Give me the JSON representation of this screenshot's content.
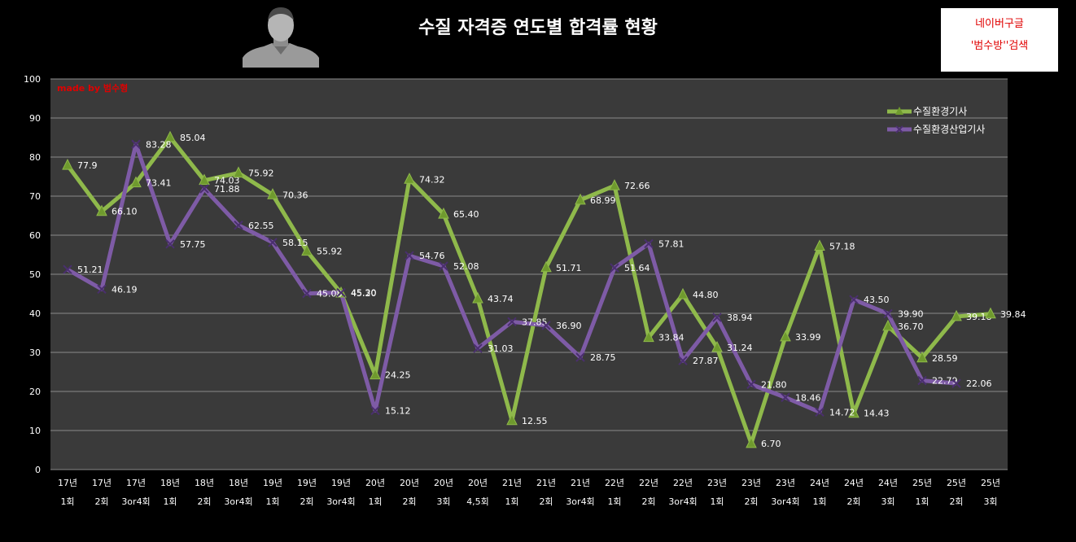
{
  "title": "수질 자격증 연도별 합격률 현황",
  "search_box": {
    "line1": "네이버구글",
    "line2": "'범수방''검색"
  },
  "made_by": "made by  범수형",
  "colors": {
    "series1": "#8FB94B",
    "series2": "#7E5BA6",
    "plot_bg": "#3a3a3a",
    "grid": "#8a8a8a"
  },
  "icons": {
    "avatar": "person-avatar-icon"
  },
  "chart_data": {
    "type": "line",
    "title": "수질 자격증 연도별 합격률 현황",
    "ylim": [
      0,
      100
    ],
    "yticks": [
      0,
      10,
      20,
      30,
      40,
      50,
      60,
      70,
      80,
      90,
      100
    ],
    "grid": true,
    "legend_position": "top-right",
    "categories": [
      [
        "17년",
        "1회"
      ],
      [
        "17년",
        "2회"
      ],
      [
        "17년",
        "3or4회"
      ],
      [
        "18년",
        "1회"
      ],
      [
        "18년",
        "2회"
      ],
      [
        "18년",
        "3or4회"
      ],
      [
        "19년",
        "1회"
      ],
      [
        "19년",
        "2회"
      ],
      [
        "19년",
        "3or4회"
      ],
      [
        "20년",
        "1회"
      ],
      [
        "20년",
        "2회"
      ],
      [
        "20년",
        "3회"
      ],
      [
        "20년",
        "4,5회"
      ],
      [
        "21년",
        "1회"
      ],
      [
        "21년",
        "2회"
      ],
      [
        "21년",
        "3or4회"
      ],
      [
        "22년",
        "1회"
      ],
      [
        "22년",
        "2회"
      ],
      [
        "22년",
        "3or4회"
      ],
      [
        "23년",
        "1회"
      ],
      [
        "23년",
        "2회"
      ],
      [
        "23년",
        "3or4회"
      ],
      [
        "24년",
        "1회"
      ],
      [
        "24년",
        "2회"
      ],
      [
        "24년",
        "3회"
      ],
      [
        "25년",
        "1회"
      ],
      [
        "25년",
        "2회"
      ],
      [
        "25년",
        "3회"
      ]
    ],
    "series": [
      {
        "name": "수질환경기사",
        "marker": "triangle",
        "values": [
          77.9,
          66.1,
          73.41,
          85.04,
          74.03,
          75.92,
          70.36,
          55.92,
          45.2,
          24.25,
          74.32,
          65.4,
          43.74,
          12.55,
          51.71,
          68.99,
          72.66,
          33.84,
          44.8,
          31.24,
          6.7,
          33.99,
          57.18,
          14.43,
          36.7,
          28.59,
          39.18,
          39.84
        ],
        "labels": [
          "77.9",
          "66.10",
          "73.41",
          "85.04",
          "74.03",
          "75.92",
          "70.36",
          "55.92",
          "45.20",
          "24.25",
          "74.32",
          "65.40",
          "43.74",
          "12.55",
          "51.71",
          "68.99",
          "72.66",
          "33.84",
          "44.80",
          "31.24",
          "6.70",
          "33.99",
          "57.18",
          "14.43",
          "36.70",
          "28.59",
          "39.18",
          "39.84"
        ]
      },
      {
        "name": "수질환경산업기사",
        "marker": "x",
        "values": [
          51.21,
          46.19,
          83.28,
          57.75,
          71.88,
          62.55,
          58.15,
          45.08,
          45.3,
          15.12,
          54.76,
          52.08,
          31.03,
          37.85,
          36.9,
          28.75,
          51.64,
          57.81,
          27.87,
          38.94,
          21.8,
          18.46,
          14.72,
          43.5,
          39.9,
          22.79,
          22.06,
          null
        ],
        "labels": [
          "51.21",
          "46.19",
          "83.28",
          "57.75",
          "71.88",
          "62.55",
          "58.15",
          "45.08",
          "45.30",
          "15.12",
          "54.76",
          "52.08",
          "31.03",
          "37.85",
          "36.90",
          "28.75",
          "51.64",
          "57.81",
          "27.87",
          "38.94",
          "21.80",
          "18.46",
          "14.72",
          "43.50",
          "39.90",
          "22.79",
          "22.06",
          null
        ]
      }
    ]
  }
}
